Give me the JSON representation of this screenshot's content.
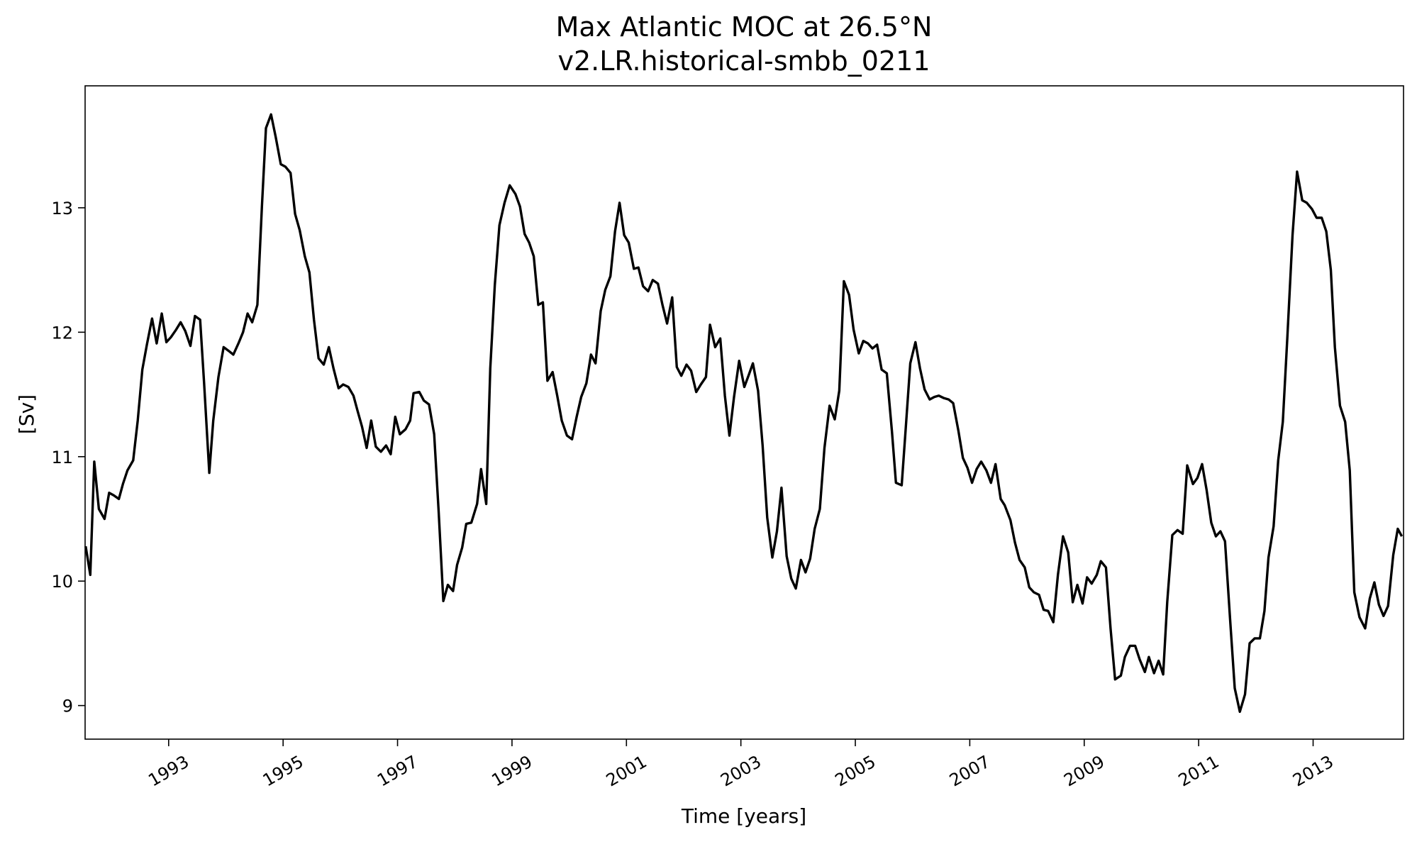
{
  "chart_data": {
    "type": "line",
    "title": "Max Atlantic MOC at 26.5°N",
    "subtitle": "v2.LR.historical-smbb_0211",
    "xlabel": "Time [years]",
    "ylabel": "[Sv]",
    "xlim": [
      1991.54,
      2014.58
    ],
    "ylim": [
      8.73,
      13.98
    ],
    "grid": false,
    "line_color": "#000000",
    "x_ticks": [
      1993,
      1995,
      1997,
      1999,
      2001,
      2003,
      2005,
      2007,
      2009,
      2011,
      2013
    ],
    "x_tick_labels": [
      "1993",
      "1995",
      "1997",
      "1999",
      "2001",
      "2003",
      "2005",
      "2007",
      "2009",
      "2011",
      "2013"
    ],
    "y_ticks": [
      9,
      10,
      11,
      12,
      13
    ],
    "y_tick_labels": [
      "9",
      "10",
      "11",
      "12",
      "13"
    ],
    "series": [
      {
        "x": [
          1991.55,
          1991.63,
          1991.7,
          1991.78,
          1991.88,
          1991.96,
          1992.04,
          1992.13,
          1992.2,
          1992.28,
          1992.38,
          1992.46,
          1992.54,
          1992.62,
          1992.71,
          1992.79,
          1992.88,
          1992.96,
          1993.04,
          1993.13,
          1993.21,
          1993.29,
          1993.38,
          1993.46,
          1993.55,
          1993.62,
          1993.71,
          1993.78,
          1993.87,
          1993.96,
          1994.05,
          1994.13,
          1994.22,
          1994.3,
          1994.38,
          1994.46,
          1994.55,
          1994.63,
          1994.7,
          1994.79,
          1994.87,
          1994.96,
          1995.04,
          1995.13,
          1995.21,
          1995.29,
          1995.38,
          1995.46,
          1995.54,
          1995.62,
          1995.71,
          1995.8,
          1995.88,
          1995.97,
          1996.05,
          1996.14,
          1996.23,
          1996.3,
          1996.38,
          1996.46,
          1996.54,
          1996.62,
          1996.71,
          1996.8,
          1996.88,
          1996.96,
          1997.04,
          1997.14,
          1997.22,
          1997.28,
          1997.38,
          1997.46,
          1997.55,
          1997.64,
          1997.72,
          1997.8,
          1997.88,
          1997.97,
          1998.04,
          1998.13,
          1998.2,
          1998.29,
          1998.39,
          1998.46,
          1998.55,
          1998.62,
          1998.7,
          1998.78,
          1998.87,
          1998.96,
          1999.06,
          1999.14,
          1999.22,
          1999.3,
          1999.38,
          1999.46,
          1999.54,
          1999.62,
          1999.71,
          1999.79,
          1999.87,
          1999.96,
          2000.05,
          2000.13,
          2000.21,
          2000.3,
          2000.38,
          2000.46,
          2000.55,
          2000.63,
          2000.72,
          2000.8,
          2000.88,
          2000.96,
          2001.04,
          2001.13,
          2001.21,
          2001.29,
          2001.38,
          2001.46,
          2001.55,
          2001.63,
          2001.71,
          2001.8,
          2001.88,
          2001.96,
          2002.05,
          2002.13,
          2002.22,
          2002.3,
          2002.39,
          2002.46,
          2002.55,
          2002.64,
          2002.72,
          2002.8,
          2002.88,
          2002.97,
          2003.06,
          2003.14,
          2003.21,
          2003.3,
          2003.38,
          2003.46,
          2003.55,
          2003.63,
          2003.71,
          2003.8,
          2003.88,
          2003.96,
          2004.05,
          2004.13,
          2004.21,
          2004.29,
          2004.38,
          2004.46,
          2004.55,
          2004.64,
          2004.72,
          2004.8,
          2004.89,
          2004.97,
          2005.06,
          2005.14,
          2005.22,
          2005.3,
          2005.38,
          2005.46,
          2005.55,
          2005.64,
          2005.71,
          2005.81,
          2005.88,
          2005.96,
          2006.05,
          2006.13,
          2006.21,
          2006.3,
          2006.38,
          2006.46,
          2006.55,
          2006.63,
          2006.71,
          2006.8,
          2006.88,
          2006.96,
          2007.04,
          2007.12,
          2007.2,
          2007.29,
          2007.37,
          2007.45,
          2007.54,
          2007.61,
          2007.71,
          2007.79,
          2007.87,
          2007.96,
          2008.04,
          2008.12,
          2008.21,
          2008.29,
          2008.37,
          2008.46,
          2008.54,
          2008.63,
          2008.72,
          2008.8,
          2008.88,
          2008.97,
          2009.05,
          2009.13,
          2009.22,
          2009.29,
          2009.38,
          2009.46,
          2009.54,
          2009.64,
          2009.71,
          2009.8,
          2009.89,
          2009.97,
          2010.06,
          2010.13,
          2010.22,
          2010.3,
          2010.38,
          2010.45,
          2010.54,
          2010.63,
          2010.72,
          2010.8,
          2010.9,
          2010.98,
          2011.06,
          2011.14,
          2011.22,
          2011.3,
          2011.38,
          2011.46,
          2011.55,
          2011.63,
          2011.72,
          2011.81,
          2011.89,
          2011.98,
          2012.07,
          2012.15,
          2012.22,
          2012.31,
          2012.39,
          2012.47,
          2012.55,
          2012.64,
          2012.72,
          2012.81,
          2012.89,
          2012.98,
          2013.06,
          2013.15,
          2013.23,
          2013.31,
          2013.38,
          2013.47,
          2013.56,
          2013.64,
          2013.72,
          2013.81,
          2013.91,
          2013.99,
          2014.07,
          2014.15,
          2014.23,
          2014.31,
          2014.4,
          2014.48,
          2014.55
        ],
        "y": [
          10.28,
          10.05,
          10.96,
          10.58,
          10.5,
          10.71,
          10.69,
          10.66,
          10.78,
          10.89,
          10.97,
          11.29,
          11.7,
          11.9,
          12.11,
          11.91,
          12.15,
          11.92,
          11.96,
          12.02,
          12.08,
          12.01,
          11.89,
          12.13,
          12.1,
          11.59,
          10.87,
          11.29,
          11.64,
          11.88,
          11.85,
          11.82,
          11.91,
          12.0,
          12.15,
          12.08,
          12.22,
          13.01,
          13.64,
          13.75,
          13.57,
          13.35,
          13.33,
          13.28,
          12.95,
          12.82,
          12.61,
          12.48,
          12.1,
          11.79,
          11.74,
          11.88,
          11.71,
          11.55,
          11.58,
          11.56,
          11.49,
          11.37,
          11.24,
          11.07,
          11.29,
          11.08,
          11.04,
          11.09,
          11.02,
          11.32,
          11.18,
          11.22,
          11.29,
          11.51,
          11.52,
          11.45,
          11.42,
          11.18,
          10.55,
          9.84,
          9.97,
          9.92,
          10.13,
          10.27,
          10.46,
          10.47,
          10.62,
          10.9,
          10.62,
          11.71,
          12.38,
          12.86,
          13.04,
          13.18,
          13.11,
          13.01,
          12.79,
          12.72,
          12.61,
          12.22,
          12.24,
          11.61,
          11.68,
          11.49,
          11.29,
          11.17,
          11.14,
          11.32,
          11.48,
          11.59,
          11.82,
          11.75,
          12.17,
          12.34,
          12.45,
          12.81,
          13.04,
          12.78,
          12.72,
          12.51,
          12.52,
          12.37,
          12.33,
          12.42,
          12.39,
          12.22,
          12.07,
          12.28,
          11.72,
          11.65,
          11.74,
          11.69,
          11.52,
          11.58,
          11.64,
          12.06,
          11.88,
          11.95,
          11.49,
          11.17,
          11.48,
          11.77,
          11.56,
          11.66,
          11.75,
          11.53,
          11.09,
          10.51,
          10.19,
          10.4,
          10.75,
          10.2,
          10.02,
          9.94,
          10.17,
          10.07,
          10.18,
          10.42,
          10.58,
          11.07,
          11.41,
          11.3,
          11.53,
          12.41,
          12.3,
          12.02,
          11.83,
          11.93,
          11.91,
          11.87,
          11.9,
          11.7,
          11.67,
          11.2,
          10.79,
          10.77,
          11.22,
          11.75,
          11.92,
          11.71,
          11.54,
          11.46,
          11.48,
          11.49,
          11.47,
          11.46,
          11.43,
          11.21,
          10.99,
          10.91,
          10.79,
          10.9,
          10.96,
          10.89,
          10.79,
          10.94,
          10.66,
          10.61,
          10.49,
          10.31,
          10.17,
          10.11,
          9.95,
          9.91,
          9.89,
          9.77,
          9.76,
          9.67,
          10.05,
          10.36,
          10.23,
          9.83,
          9.97,
          9.82,
          10.03,
          9.98,
          10.05,
          10.16,
          10.11,
          9.62,
          9.21,
          9.24,
          9.39,
          9.48,
          9.48,
          9.37,
          9.27,
          9.39,
          9.26,
          9.36,
          9.25,
          9.83,
          10.37,
          10.41,
          10.38,
          10.93,
          10.78,
          10.83,
          10.94,
          10.73,
          10.47,
          10.36,
          10.4,
          10.32,
          9.69,
          9.14,
          8.95,
          9.09,
          9.5,
          9.54,
          9.54,
          9.76,
          10.19,
          10.44,
          10.97,
          11.28,
          11.96,
          12.78,
          13.29,
          13.06,
          13.04,
          12.99,
          12.92,
          12.92,
          12.81,
          12.5,
          11.88,
          11.41,
          11.28,
          10.89,
          9.91,
          9.71,
          9.62,
          9.86,
          9.99,
          9.81,
          9.72,
          9.8,
          10.21,
          10.42,
          10.36
        ]
      }
    ]
  }
}
